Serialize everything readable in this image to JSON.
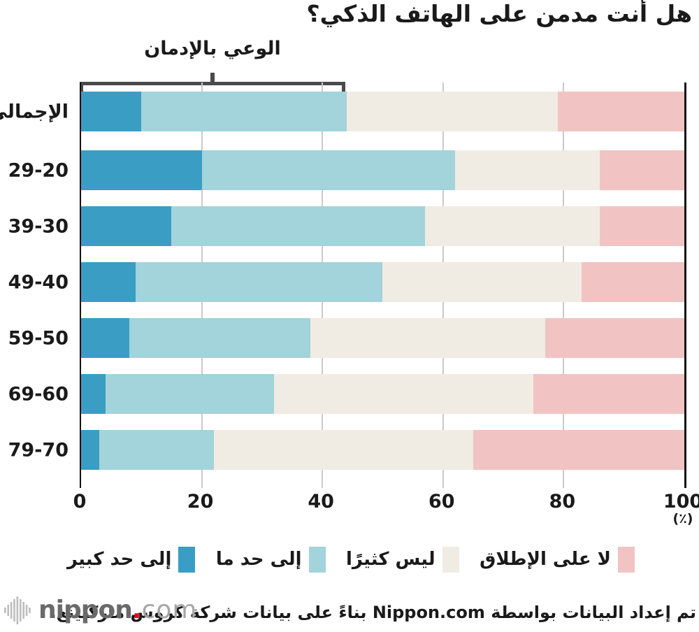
{
  "title": "هل أنت مدمن على الهاتف الذكي؟",
  "annotation_label": "الوعي بالإدمان",
  "chart_data": {
    "type": "bar",
    "stacked": true,
    "orientation": "horizontal",
    "categories": [
      "الإجمالي",
      "29-20",
      "39-30",
      "49-40",
      "59-50",
      "69-60",
      "79-70"
    ],
    "series": [
      {
        "name": "إلى حد كبير",
        "color": "#3a9dc4",
        "values": [
          10,
          20,
          15,
          9,
          8,
          4,
          3
        ]
      },
      {
        "name": "إلى حد ما",
        "color": "#a3d3db",
        "values": [
          34,
          42,
          42,
          41,
          30,
          28,
          19
        ]
      },
      {
        "name": "ليس كثيرًا",
        "color": "#f0ece3",
        "values": [
          35,
          24,
          29,
          33,
          39,
          43,
          43
        ]
      },
      {
        "name": "لا على الإطلاق",
        "color": "#f2c3c3",
        "values": [
          21,
          14,
          14,
          17,
          23,
          25,
          35
        ]
      }
    ],
    "xlim": [
      0,
      100
    ],
    "x_ticks": [
      0,
      20,
      40,
      60,
      80,
      100
    ],
    "x_unit": "(٪)",
    "grid": true,
    "legend_position": "bottom",
    "annotation": {
      "label": "الوعي بالإدمان",
      "span_pct": [
        0,
        44
      ],
      "applies_to": "الإجمالي"
    }
  },
  "footer": {
    "text": "تم إعداد البيانات بواسطة Nippon.com بناءً على بيانات شركة كروس ماركتينغ."
  },
  "logo": {
    "wordmark": "nippon",
    "dot": ".",
    "tld": "com"
  },
  "colors": {
    "series_strong_blue": "#3a9dc4",
    "series_light_blue": "#a3d3db",
    "series_beige": "#f0ece3",
    "series_pink": "#f2c3c3",
    "bracket": "#4a4a4a",
    "gridline": "#cacaca",
    "axis": "#111111",
    "logo_dot_red": "#e60012"
  }
}
